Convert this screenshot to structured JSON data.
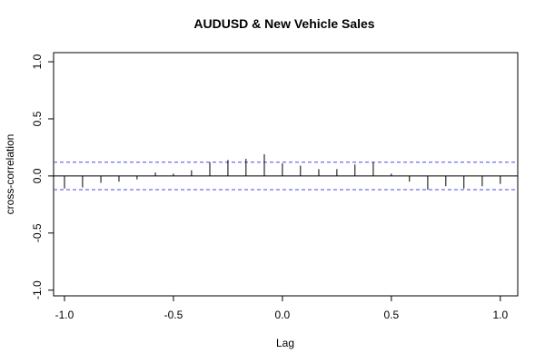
{
  "chart_data": {
    "type": "bar",
    "title": "AUDUSD & New Vehicle Sales",
    "xlabel": "Lag",
    "ylabel": "cross-correlation",
    "xlim": [
      -1.05,
      1.08
    ],
    "ylim": [
      -1.05,
      1.08
    ],
    "x_ticks": [
      -1.0,
      -0.5,
      0.0,
      0.5,
      1.0
    ],
    "x_tick_labels": [
      "-1.0",
      "-0.5",
      "0.0",
      "0.5",
      "1.0"
    ],
    "y_ticks": [
      -1.0,
      -0.5,
      0.0,
      0.5,
      1.0
    ],
    "y_tick_labels": [
      "-1.0",
      "-0.5",
      "0.0",
      "0.5",
      "1.0"
    ],
    "confidence_limits": [
      0.12,
      -0.12
    ],
    "grid": false,
    "series": [
      {
        "x": [
          -1.0,
          -0.917,
          -0.833,
          -0.75,
          -0.667,
          -0.583,
          -0.5,
          -0.417,
          -0.333,
          -0.25,
          -0.167,
          -0.083,
          0.0,
          0.083,
          0.167,
          0.25,
          0.333,
          0.417,
          0.5,
          0.583,
          0.667,
          0.75,
          0.833,
          0.917,
          1.0
        ],
        "values": [
          -0.11,
          -0.1,
          -0.06,
          -0.05,
          -0.03,
          0.03,
          0.02,
          0.05,
          0.12,
          0.14,
          0.15,
          0.19,
          0.11,
          0.09,
          0.06,
          0.06,
          0.1,
          0.12,
          0.02,
          -0.05,
          -0.12,
          -0.09,
          -0.11,
          -0.09,
          -0.07
        ]
      }
    ],
    "colors": {
      "spike": "#000000",
      "confidence": "#4a4ae6",
      "frame": "#000000"
    }
  }
}
